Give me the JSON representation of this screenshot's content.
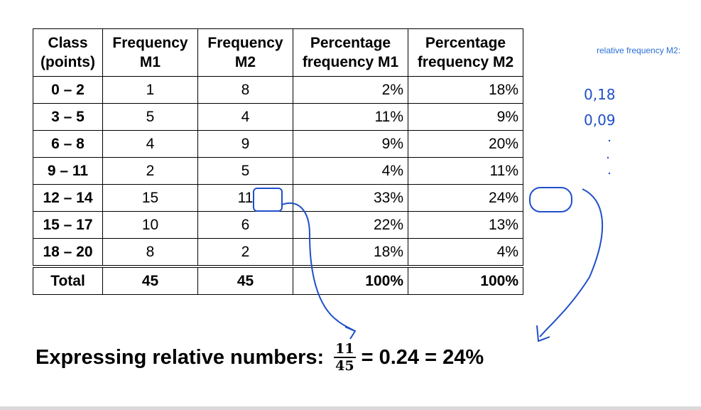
{
  "table": {
    "headers": [
      "Class\n(points)",
      "Frequency\nM1",
      "Frequency\nM2",
      "Percentage\nfrequency M1",
      "Percentage\nfrequency M2"
    ],
    "header_lines": [
      [
        "Class",
        "(points)"
      ],
      [
        "Frequency",
        "M1"
      ],
      [
        "Frequency",
        "M2"
      ],
      [
        "Percentage",
        "frequency M1"
      ],
      [
        "Percentage",
        "frequency M2"
      ]
    ],
    "rows": [
      [
        "0 – 2",
        "1",
        "8",
        "2%",
        "18%"
      ],
      [
        "3 – 5",
        "5",
        "4",
        "11%",
        "9%"
      ],
      [
        "6 – 8",
        "4",
        "9",
        "9%",
        "20%"
      ],
      [
        "9 – 11",
        "2",
        "5",
        "4%",
        "11%"
      ],
      [
        "12 – 14",
        "15",
        "11",
        "33%",
        "24%"
      ],
      [
        "15 – 17",
        "10",
        "6",
        "22%",
        "13%"
      ],
      [
        "18 – 20",
        "8",
        "2",
        "18%",
        "4%"
      ]
    ],
    "total": [
      "Total",
      "45",
      "45",
      "100%",
      "100%"
    ]
  },
  "note": "relative frequency M2:",
  "handwritten": [
    "0,18",
    "0,09"
  ],
  "formula": {
    "prefix": "Expressing relative numbers:",
    "numerator": "11",
    "denominator": "45",
    "suffix": "= 0.24 = 24%"
  },
  "colors": {
    "ink": "#1f4fc9",
    "note": "#2a6fd6"
  }
}
